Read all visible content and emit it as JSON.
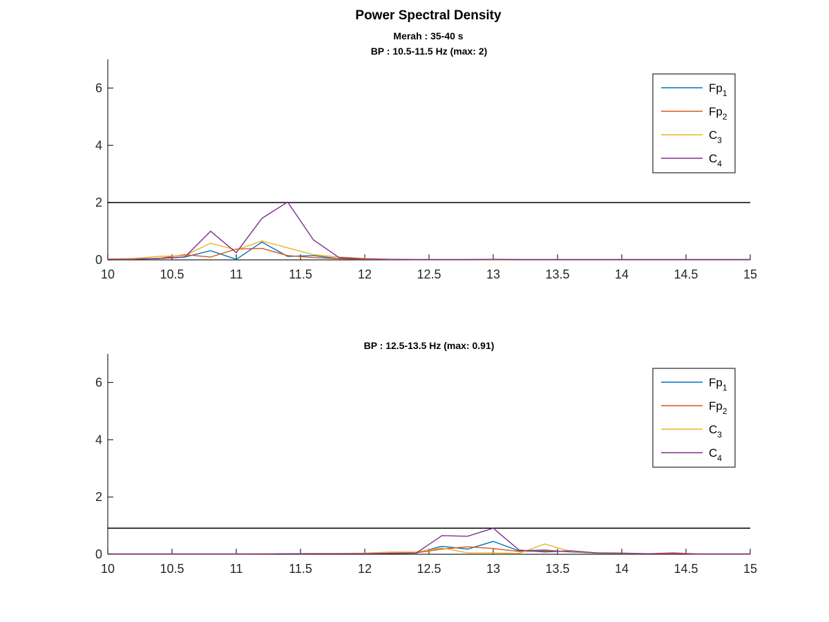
{
  "figure": {
    "title": "Power Spectral Density",
    "subtitle": "Merah : 35-40 s"
  },
  "chart_data": [
    {
      "type": "line",
      "title": "BP : 10.5-11.5 Hz (max: 2)",
      "xlabel": "",
      "ylabel": "",
      "xlim": [
        10,
        15
      ],
      "ylim": [
        0,
        7
      ],
      "xticks": [
        "10",
        "10.5",
        "11",
        "11.5",
        "12",
        "12.5",
        "13",
        "13.5",
        "14",
        "14.5",
        "15"
      ],
      "yticks": [
        "0",
        "2",
        "4",
        "6"
      ],
      "grid": false,
      "legend_position": "top-right",
      "hline": 2,
      "x": [
        10,
        10.2,
        10.4,
        10.6,
        10.8,
        11.0,
        11.2,
        11.4,
        11.6,
        11.8,
        12.0,
        12.2,
        12.4,
        12.6,
        12.8,
        13.0,
        13.2,
        13.4,
        13.6,
        13.8,
        14.0,
        14.2,
        14.4,
        14.6,
        14.8,
        15.0
      ],
      "series": [
        {
          "name": "Fp",
          "sub": "1",
          "color": "#0072BD",
          "values": [
            0.02,
            0.03,
            0.05,
            0.1,
            0.32,
            0.02,
            0.62,
            0.12,
            0.15,
            0.04,
            0.02,
            0.02,
            0.01,
            0.01,
            0.01,
            0.01,
            0.01,
            0.01,
            0.01,
            0.01,
            0.01,
            0.01,
            0.01,
            0.01,
            0.01,
            0.01
          ]
        },
        {
          "name": "Fp",
          "sub": "2",
          "color": "#D95319",
          "values": [
            0.02,
            0.02,
            0.05,
            0.18,
            0.1,
            0.38,
            0.4,
            0.15,
            0.08,
            0.04,
            0.02,
            0.01,
            0.01,
            0.01,
            0.01,
            0.01,
            0.01,
            0.01,
            0.01,
            0.01,
            0.01,
            0.01,
            0.01,
            0.01,
            0.01,
            0.01
          ]
        },
        {
          "name": "C",
          "sub": "3",
          "color": "#EDB120",
          "values": [
            0.03,
            0.05,
            0.12,
            0.15,
            0.58,
            0.35,
            0.66,
            0.42,
            0.18,
            0.1,
            0.05,
            0.02,
            0.01,
            0.01,
            0.01,
            0.01,
            0.01,
            0.01,
            0.01,
            0.01,
            0.01,
            0.01,
            0.01,
            0.01,
            0.01,
            0.01
          ]
        },
        {
          "name": "C",
          "sub": "4",
          "color": "#7E2F8E",
          "values": [
            0.02,
            0.02,
            0.05,
            0.1,
            1.0,
            0.25,
            1.45,
            2.02,
            0.7,
            0.08,
            0.03,
            0.02,
            0.01,
            0.01,
            0.01,
            0.02,
            0.01,
            0.01,
            0.01,
            0.01,
            0.01,
            0.01,
            0.01,
            0.01,
            0.01,
            0.01
          ]
        }
      ]
    },
    {
      "type": "line",
      "title": "BP : 12.5-13.5 Hz (max: 0.91)",
      "xlabel": "",
      "ylabel": "",
      "xlim": [
        10,
        15
      ],
      "ylim": [
        0,
        7
      ],
      "xticks": [
        "10",
        "10.5",
        "11",
        "11.5",
        "12",
        "12.5",
        "13",
        "13.5",
        "14",
        "14.5",
        "15"
      ],
      "yticks": [
        "0",
        "2",
        "4",
        "6"
      ],
      "grid": false,
      "legend_position": "top-right",
      "hline": 0.91,
      "x": [
        10,
        10.2,
        10.4,
        10.6,
        10.8,
        11.0,
        11.2,
        11.4,
        11.6,
        11.8,
        12.0,
        12.2,
        12.4,
        12.6,
        12.8,
        13.0,
        13.2,
        13.4,
        13.6,
        13.8,
        14.0,
        14.2,
        14.4,
        14.6,
        14.8,
        15.0
      ],
      "series": [
        {
          "name": "Fp",
          "sub": "1",
          "color": "#0072BD",
          "values": [
            0.01,
            0.01,
            0.01,
            0.01,
            0.01,
            0.01,
            0.01,
            0.02,
            0.02,
            0.02,
            0.02,
            0.03,
            0.04,
            0.28,
            0.18,
            0.45,
            0.12,
            0.15,
            0.08,
            0.04,
            0.03,
            0.02,
            0.02,
            0.01,
            0.01,
            0.01
          ]
        },
        {
          "name": "Fp",
          "sub": "2",
          "color": "#D95319",
          "values": [
            0.01,
            0.01,
            0.01,
            0.01,
            0.01,
            0.01,
            0.01,
            0.02,
            0.02,
            0.02,
            0.03,
            0.04,
            0.05,
            0.18,
            0.26,
            0.2,
            0.1,
            0.12,
            0.1,
            0.05,
            0.03,
            0.02,
            0.05,
            0.01,
            0.01,
            0.01
          ]
        },
        {
          "name": "C",
          "sub": "3",
          "color": "#EDB120",
          "values": [
            0.01,
            0.01,
            0.01,
            0.01,
            0.01,
            0.01,
            0.02,
            0.02,
            0.03,
            0.03,
            0.04,
            0.08,
            0.08,
            0.22,
            0.05,
            0.05,
            0.03,
            0.36,
            0.1,
            0.04,
            0.03,
            0.02,
            0.02,
            0.01,
            0.01,
            0.01
          ]
        },
        {
          "name": "C",
          "sub": "4",
          "color": "#7E2F8E",
          "values": [
            0.01,
            0.01,
            0.01,
            0.01,
            0.01,
            0.01,
            0.01,
            0.02,
            0.02,
            0.02,
            0.02,
            0.03,
            0.04,
            0.65,
            0.63,
            0.91,
            0.15,
            0.08,
            0.12,
            0.05,
            0.04,
            0.02,
            0.02,
            0.01,
            0.01,
            0.01
          ]
        }
      ]
    }
  ]
}
